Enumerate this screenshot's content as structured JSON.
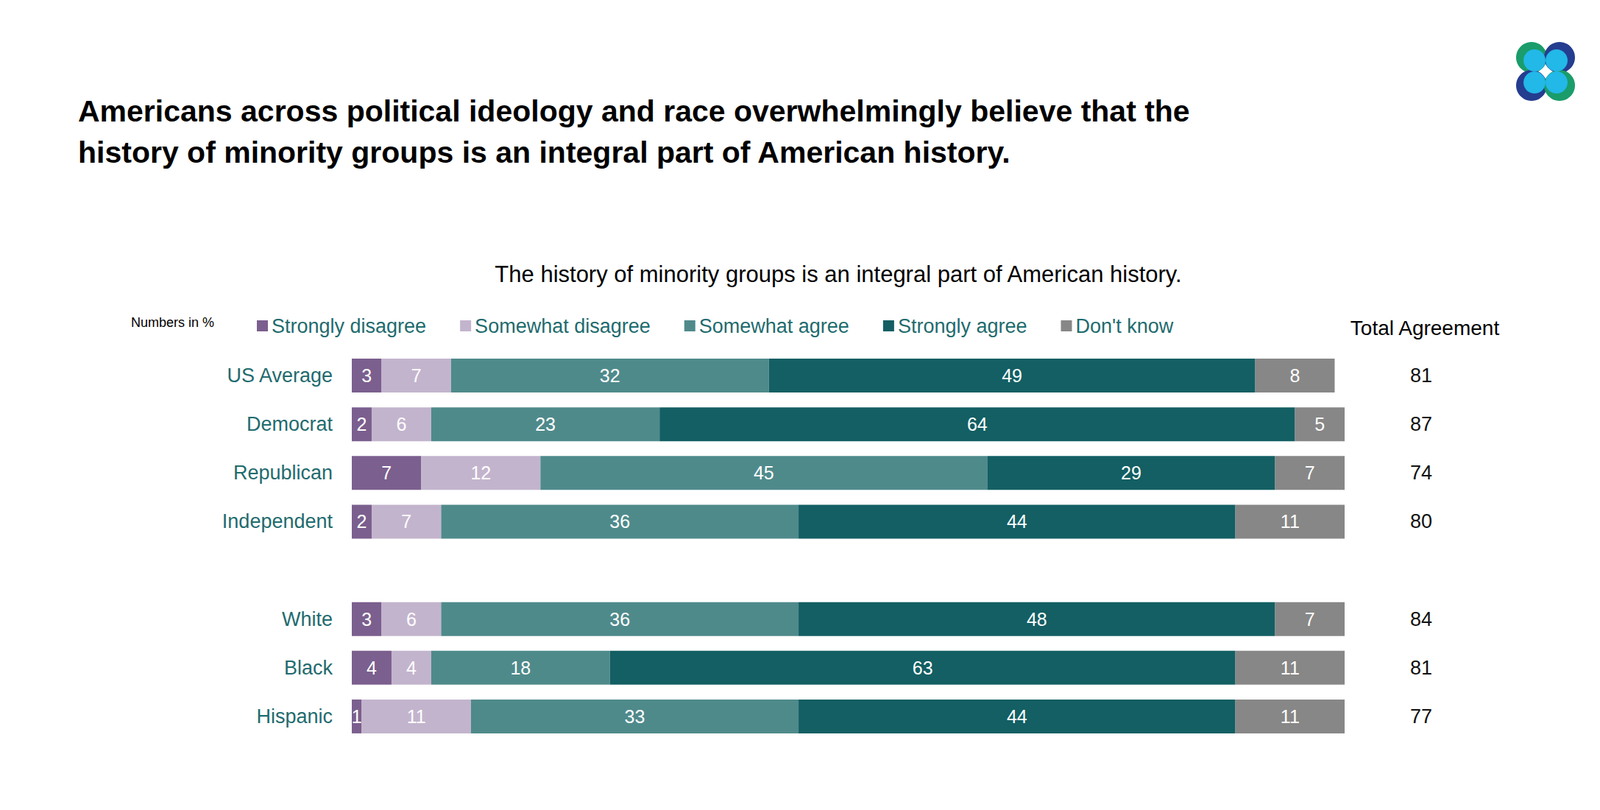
{
  "chart_data": {
    "type": "bar",
    "title": "Americans across political ideology and race overwhelmingly believe that the history of minority groups is an integral part of American history.",
    "subtitle": "The history of minority groups is an integral part of American history.",
    "note": "Numbers in %",
    "orientation": "horizontal",
    "stacked": true,
    "data_labels": true,
    "grid": false,
    "tick_labels": "y",
    "legend": "top",
    "xlim": [
      0,
      100
    ],
    "categories": [
      "US Average",
      "Democrat",
      "Republican",
      "Independent",
      null,
      "White",
      "Black",
      "Hispanic"
    ],
    "series": [
      {
        "name": "Strongly disagree",
        "color": "#7b5f8e",
        "values": [
          3,
          2,
          7,
          2,
          null,
          3,
          4,
          1
        ]
      },
      {
        "name": "Somewhat disagree",
        "color": "#c3b4cd",
        "values": [
          7,
          6,
          12,
          7,
          null,
          6,
          4,
          11
        ]
      },
      {
        "name": "Somewhat agree",
        "color": "#4f8a8b",
        "values": [
          32,
          23,
          45,
          36,
          null,
          36,
          18,
          33
        ]
      },
      {
        "name": "Strongly agree",
        "color": "#135f63",
        "values": [
          49,
          64,
          29,
          44,
          null,
          48,
          63,
          44
        ]
      },
      {
        "name": "Don't know",
        "color": "#878787",
        "values": [
          8,
          5,
          7,
          11,
          null,
          7,
          11,
          11
        ]
      }
    ],
    "totals": {
      "title": "Total Agreement",
      "values": [
        81,
        87,
        74,
        80,
        null,
        84,
        81,
        77
      ]
    }
  }
}
